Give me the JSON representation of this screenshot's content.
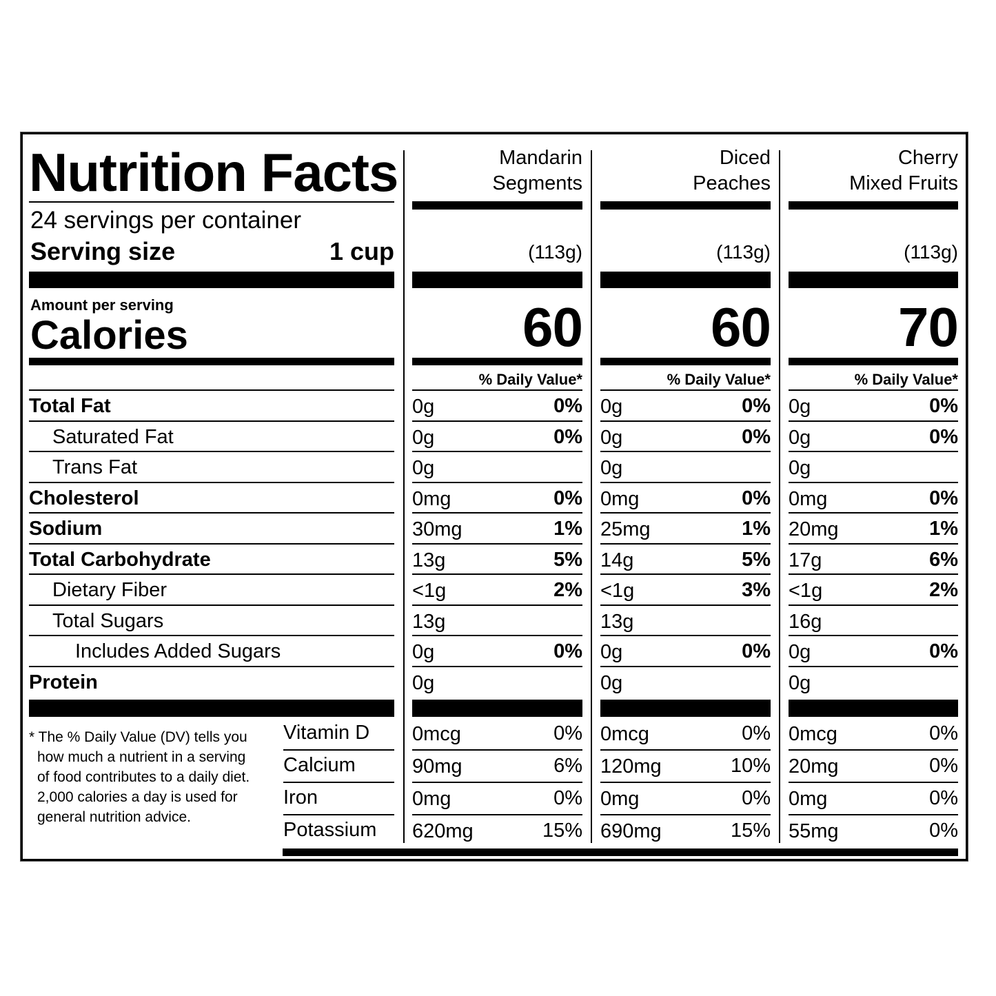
{
  "header": {
    "title": "Nutrition Facts",
    "servings_per_container": "24 servings per container",
    "serving_size_label": "Serving size",
    "serving_size_value": "1 cup",
    "amount_per_serving": "Amount per serving",
    "calories_label": "Calories",
    "daily_value_header": "% Daily Value*"
  },
  "products": [
    {
      "name_line1": "Mandarin",
      "name_line2": "Segments",
      "serving_grams": "(113g)",
      "calories": "60"
    },
    {
      "name_line1": "Diced",
      "name_line2": "Peaches",
      "serving_grams": "(113g)",
      "calories": "60"
    },
    {
      "name_line1": "Cherry",
      "name_line2": "Mixed Fruits",
      "serving_grams": "(113g)",
      "calories": "70"
    }
  ],
  "nutrients": [
    {
      "label": "Total Fat",
      "bold": true,
      "indent": 0,
      "values": [
        {
          "amount": "0g",
          "dv": "0%"
        },
        {
          "amount": "0g",
          "dv": "0%"
        },
        {
          "amount": "0g",
          "dv": "0%"
        }
      ]
    },
    {
      "label": "Saturated Fat",
      "bold": false,
      "indent": 1,
      "values": [
        {
          "amount": "0g",
          "dv": "0%"
        },
        {
          "amount": "0g",
          "dv": "0%"
        },
        {
          "amount": "0g",
          "dv": "0%"
        }
      ]
    },
    {
      "label": "Trans Fat",
      "bold": false,
      "indent": 1,
      "values": [
        {
          "amount": "0g",
          "dv": ""
        },
        {
          "amount": "0g",
          "dv": ""
        },
        {
          "amount": "0g",
          "dv": ""
        }
      ]
    },
    {
      "label": "Cholesterol",
      "bold": true,
      "indent": 0,
      "values": [
        {
          "amount": "0mg",
          "dv": "0%"
        },
        {
          "amount": "0mg",
          "dv": "0%"
        },
        {
          "amount": "0mg",
          "dv": "0%"
        }
      ]
    },
    {
      "label": "Sodium",
      "bold": true,
      "indent": 0,
      "values": [
        {
          "amount": "30mg",
          "dv": "1%"
        },
        {
          "amount": "25mg",
          "dv": "1%"
        },
        {
          "amount": "20mg",
          "dv": "1%"
        }
      ]
    },
    {
      "label": "Total Carbohydrate",
      "bold": true,
      "indent": 0,
      "values": [
        {
          "amount": "13g",
          "dv": "5%"
        },
        {
          "amount": "14g",
          "dv": "5%"
        },
        {
          "amount": "17g",
          "dv": "6%"
        }
      ]
    },
    {
      "label": "Dietary Fiber",
      "bold": false,
      "indent": 1,
      "values": [
        {
          "amount": "<1g",
          "dv": "2%"
        },
        {
          "amount": "<1g",
          "dv": "3%"
        },
        {
          "amount": "<1g",
          "dv": "2%"
        }
      ]
    },
    {
      "label": "Total Sugars",
      "bold": false,
      "indent": 1,
      "values": [
        {
          "amount": "13g",
          "dv": ""
        },
        {
          "amount": "13g",
          "dv": ""
        },
        {
          "amount": "16g",
          "dv": ""
        }
      ]
    },
    {
      "label": "Includes Added Sugars",
      "bold": false,
      "indent": 2,
      "values": [
        {
          "amount": "0g",
          "dv": "0%"
        },
        {
          "amount": "0g",
          "dv": "0%"
        },
        {
          "amount": "0g",
          "dv": "0%"
        }
      ]
    },
    {
      "label": "Protein",
      "bold": true,
      "indent": 0,
      "values": [
        {
          "amount": "0g",
          "dv": ""
        },
        {
          "amount": "0g",
          "dv": ""
        },
        {
          "amount": "0g",
          "dv": ""
        }
      ]
    }
  ],
  "vitamins": [
    {
      "label": "Vitamin D",
      "values": [
        {
          "amount": "0mcg",
          "dv": "0%"
        },
        {
          "amount": "0mcg",
          "dv": "0%"
        },
        {
          "amount": "0mcg",
          "dv": "0%"
        }
      ]
    },
    {
      "label": "Calcium",
      "values": [
        {
          "amount": "90mg",
          "dv": "6%"
        },
        {
          "amount": "120mg",
          "dv": "10%"
        },
        {
          "amount": "20mg",
          "dv": "0%"
        }
      ]
    },
    {
      "label": "Iron",
      "values": [
        {
          "amount": "0mg",
          "dv": "0%"
        },
        {
          "amount": "0mg",
          "dv": "0%"
        },
        {
          "amount": "0mg",
          "dv": "0%"
        }
      ]
    },
    {
      "label": "Potassium",
      "values": [
        {
          "amount": "620mg",
          "dv": "15%"
        },
        {
          "amount": "690mg",
          "dv": "15%"
        },
        {
          "amount": "55mg",
          "dv": "0%"
        }
      ]
    }
  ],
  "footnote": {
    "lines": [
      "* The % Daily Value (DV) tells you",
      "how much a nutrient in a serving",
      "of food contributes to a daily diet.",
      "2,000 calories a day is used for",
      "general nutrition advice."
    ]
  }
}
